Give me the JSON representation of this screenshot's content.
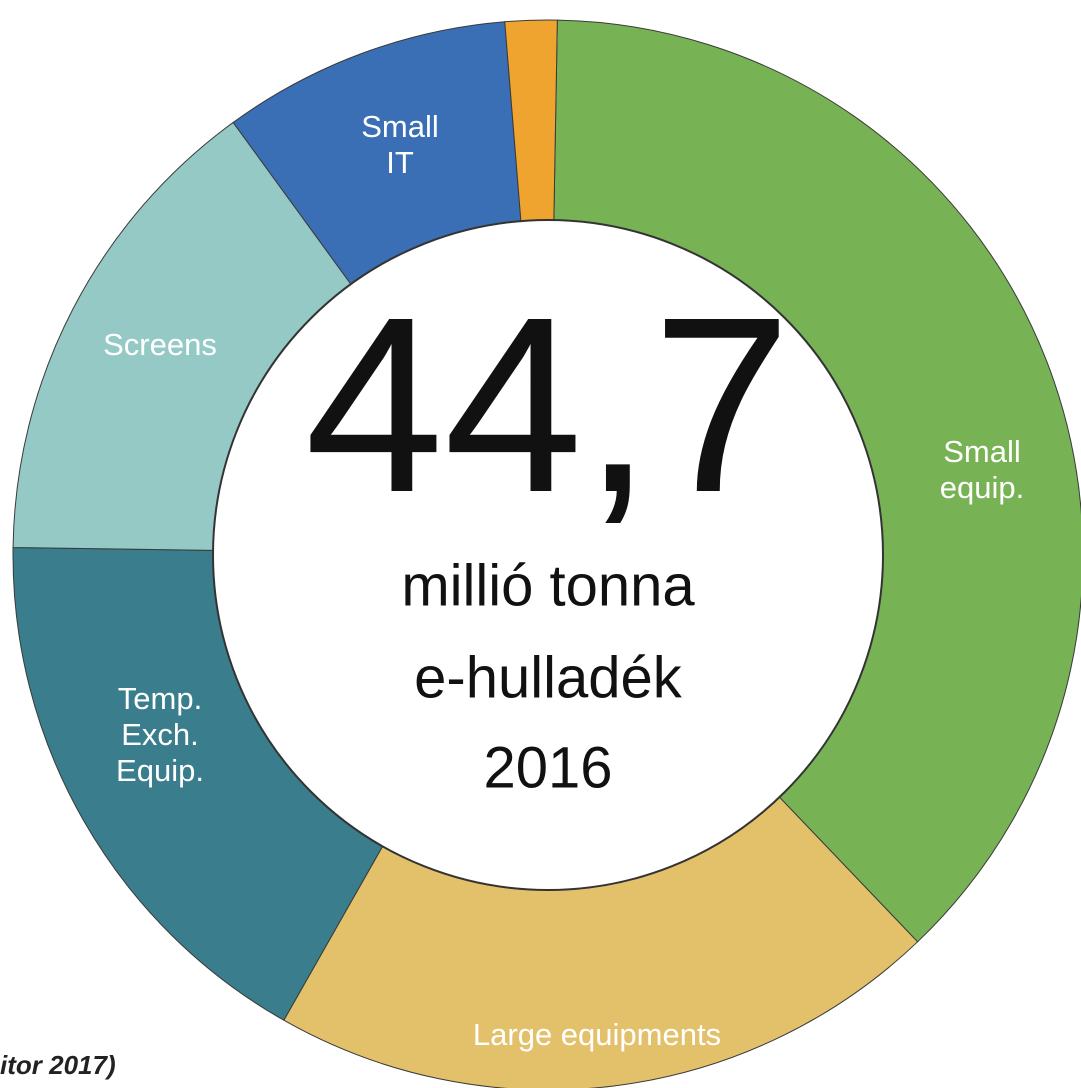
{
  "chart_data": {
    "type": "donut",
    "center_text": [
      "44,7",
      "millió tonna",
      "e-hulladék",
      "2016"
    ],
    "source": "itor 2017)",
    "categories": [
      "Small equip.",
      "Large equipments",
      "Temp. Exch. Equip.",
      "Screens",
      "Small IT",
      null
    ],
    "values": [
      16.8,
      9.1,
      7.6,
      6.6,
      3.9,
      0.7
    ],
    "colors": [
      "#77b255",
      "#e3c16b",
      "#3a7d8c",
      "#94c9c6",
      "#3a6fb5",
      "#f0a430"
    ]
  }
}
